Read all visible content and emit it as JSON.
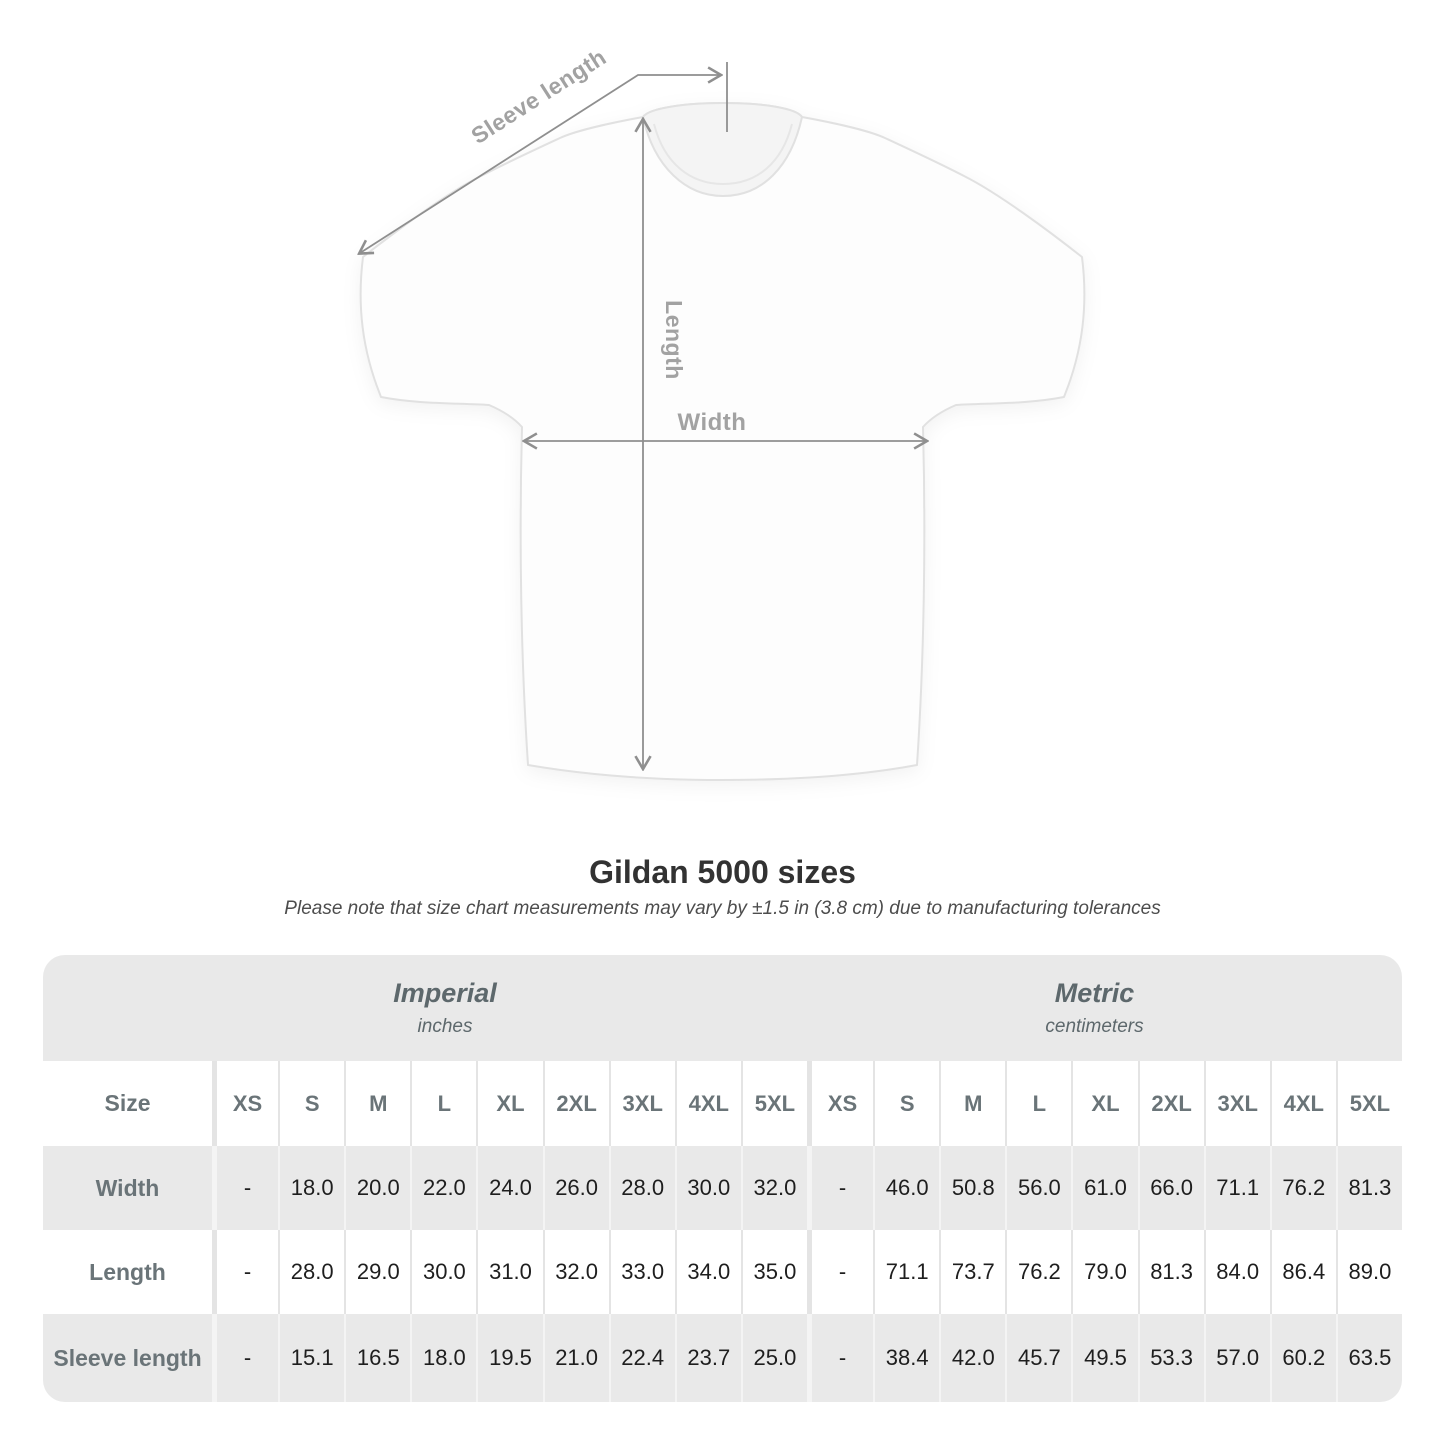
{
  "title": "Gildan 5000 sizes",
  "subtitle": "Please note that size chart measurements may vary by ±1.5 in (3.8 cm) due to manufacturing tolerances",
  "diagram": {
    "labels": {
      "sleeve_length": "Sleeve length",
      "length": "Length",
      "width": "Width"
    }
  },
  "colors": {
    "measure_line": "#8f8f8f",
    "measure_label": "#a2a2a2",
    "table_band_gray": "#e9e9e9",
    "header_text": "#6a7478",
    "value_text": "#1e1e1e",
    "title_text": "#323232"
  },
  "table": {
    "sections": [
      {
        "label": "Imperial",
        "sublabel": "inches"
      },
      {
        "label": "Metric",
        "sublabel": "centimeters"
      }
    ],
    "size_header": "Size",
    "sizes": [
      "XS",
      "S",
      "M",
      "L",
      "XL",
      "2XL",
      "3XL",
      "4XL",
      "5XL"
    ],
    "rows": [
      {
        "label": "Width",
        "imperial": [
          "-",
          "18.0",
          "20.0",
          "22.0",
          "24.0",
          "26.0",
          "28.0",
          "30.0",
          "32.0"
        ],
        "metric": [
          "-",
          "46.0",
          "50.8",
          "56.0",
          "61.0",
          "66.0",
          "71.1",
          "76.2",
          "81.3"
        ]
      },
      {
        "label": "Length",
        "imperial": [
          "-",
          "28.0",
          "29.0",
          "30.0",
          "31.0",
          "32.0",
          "33.0",
          "34.0",
          "35.0"
        ],
        "metric": [
          "-",
          "71.1",
          "73.7",
          "76.2",
          "79.0",
          "81.3",
          "84.0",
          "86.4",
          "89.0"
        ]
      },
      {
        "label": "Sleeve length",
        "imperial": [
          "-",
          "15.1",
          "16.5",
          "18.0",
          "19.5",
          "21.0",
          "22.4",
          "23.7",
          "25.0"
        ],
        "metric": [
          "-",
          "38.4",
          "42.0",
          "45.7",
          "49.5",
          "53.3",
          "57.0",
          "60.2",
          "63.5"
        ]
      }
    ]
  },
  "chart_data": {
    "type": "table",
    "title": "Gildan 5000 sizes",
    "note": "Please note that size chart measurements may vary by ±1.5 in (3.8 cm) due to manufacturing tolerances",
    "column_groups": [
      "Imperial (inches)",
      "Metric (centimeters)"
    ],
    "columns": [
      "XS",
      "S",
      "M",
      "L",
      "XL",
      "2XL",
      "3XL",
      "4XL",
      "5XL"
    ],
    "rows": [
      {
        "measurement": "Width",
        "imperial_inches": [
          null,
          18.0,
          20.0,
          22.0,
          24.0,
          26.0,
          28.0,
          30.0,
          32.0
        ],
        "metric_cm": [
          null,
          46.0,
          50.8,
          56.0,
          61.0,
          66.0,
          71.1,
          76.2,
          81.3
        ]
      },
      {
        "measurement": "Length",
        "imperial_inches": [
          null,
          28.0,
          29.0,
          30.0,
          31.0,
          32.0,
          33.0,
          34.0,
          35.0
        ],
        "metric_cm": [
          null,
          71.1,
          73.7,
          76.2,
          79.0,
          81.3,
          84.0,
          86.4,
          89.0
        ]
      },
      {
        "measurement": "Sleeve length",
        "imperial_inches": [
          null,
          15.1,
          16.5,
          18.0,
          19.5,
          21.0,
          22.4,
          23.7,
          25.0
        ],
        "metric_cm": [
          null,
          38.4,
          42.0,
          45.7,
          49.5,
          53.3,
          57.0,
          60.2,
          63.5
        ]
      }
    ]
  }
}
